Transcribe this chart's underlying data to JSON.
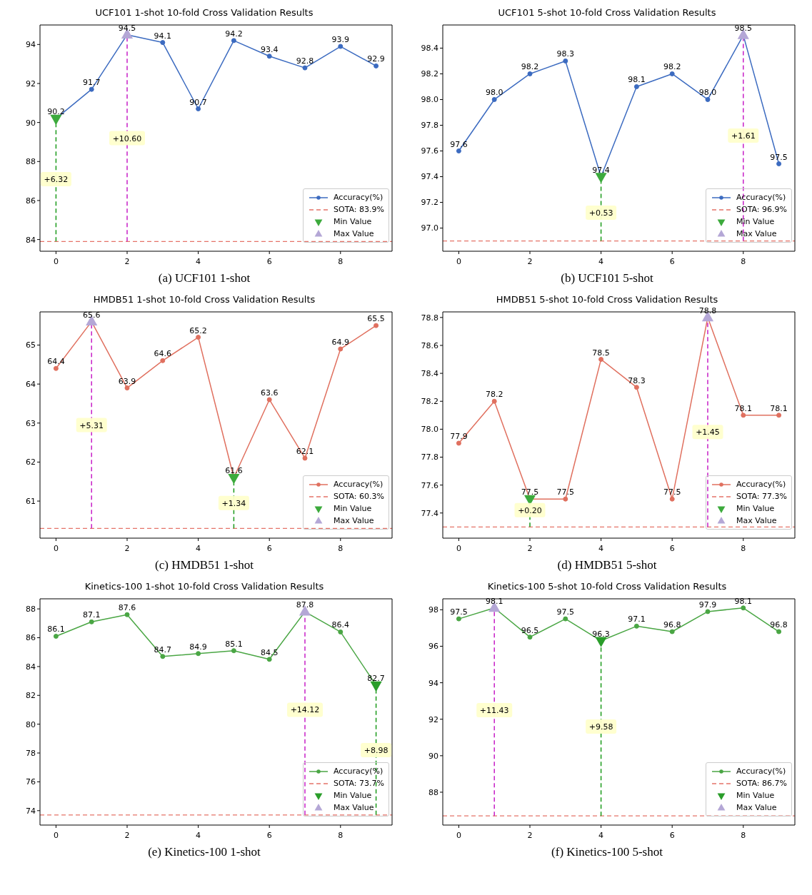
{
  "chart_data": [
    {
      "type": "line",
      "title": "UCF101 1-shot 10-fold Cross Validation Results",
      "x": [
        0,
        1,
        2,
        3,
        4,
        5,
        6,
        7,
        8,
        9
      ],
      "xlim": [
        -0.45,
        9.45
      ],
      "xticks": [
        0,
        2,
        4,
        6,
        8
      ],
      "ylim": [
        83.4,
        95.0
      ],
      "yticks": [
        84,
        86,
        88,
        90,
        92,
        94
      ],
      "legend": "bottom right",
      "series": [
        {
          "type": "line",
          "x": [
            0,
            0
          ],
          "values": [
            83.9,
            90.2
          ],
          "color": "#1a9a1a",
          "line_style": "dashed",
          "marker": "none"
        },
        {
          "type": "line",
          "x": [
            2,
            2
          ],
          "values": [
            83.9,
            94.5
          ],
          "color": "#c71fc7",
          "line_style": "dashed",
          "marker": "none"
        },
        {
          "name": "Accuracy(%)",
          "type": "line",
          "color": "#3c6bc0",
          "marker": "circle",
          "values": [
            90.2,
            91.7,
            94.5,
            94.1,
            90.7,
            94.2,
            93.4,
            92.8,
            93.9,
            92.9
          ],
          "value_labels": [
            "90.2",
            "91.7",
            "94.5",
            "94.1",
            "90.7",
            "94.2",
            "93.4",
            "92.8",
            "93.9",
            "92.9"
          ]
        },
        {
          "name": "Min Value",
          "type": "scatter",
          "x": [
            0
          ],
          "values": [
            90.2
          ],
          "color": "#3caa3c",
          "marker": "triangle-down"
        },
        {
          "name": "Max Value",
          "type": "scatter",
          "x": [
            2
          ],
          "values": [
            94.5
          ],
          "color": "#b4a7d6",
          "marker": "triangle"
        }
      ],
      "ref_lines": [
        {
          "axis": "y",
          "value": 83.9,
          "label": "SOTA: 83.9%",
          "color": "#e57368",
          "line_style": "dashed"
        }
      ],
      "annotations": [
        {
          "text": "+6.32",
          "x": 0,
          "y": 87.1
        },
        {
          "text": "+10.60",
          "x": 2,
          "y": 89.2
        },
        "(a) UCF101 1-shot"
      ]
    },
    {
      "type": "line",
      "title": "UCF101 5-shot 10-fold Cross Validation Results",
      "x": [
        0,
        1,
        2,
        3,
        4,
        5,
        6,
        7,
        8,
        9
      ],
      "xlim": [
        -0.45,
        9.45
      ],
      "xticks": [
        0,
        2,
        4,
        6,
        8
      ],
      "ylim": [
        96.82,
        98.58
      ],
      "yticks": [
        {
          "value": 97.0,
          "label": "97.0"
        },
        97.2,
        97.4,
        97.6,
        97.8,
        {
          "value": 98.0,
          "label": "98.0"
        },
        98.2,
        98.4
      ],
      "legend": "bottom right",
      "series": [
        {
          "type": "line",
          "x": [
            4,
            4
          ],
          "values": [
            96.9,
            97.4
          ],
          "color": "#1a9a1a",
          "line_style": "dashed",
          "marker": "none"
        },
        {
          "type": "line",
          "x": [
            8,
            8
          ],
          "values": [
            96.9,
            98.5
          ],
          "color": "#c71fc7",
          "line_style": "dashed",
          "marker": "none"
        },
        {
          "name": "Accuracy(%)",
          "type": "line",
          "color": "#3c6bc0",
          "marker": "circle",
          "values": [
            97.6,
            98.0,
            98.2,
            98.3,
            97.4,
            98.1,
            98.2,
            98.0,
            98.5,
            97.5
          ],
          "value_labels": [
            "97.6",
            "98.0",
            "98.2",
            "98.3",
            "97.4",
            "98.1",
            "98.2",
            "98.0",
            "98.5",
            "97.5"
          ]
        },
        {
          "name": "Min Value",
          "type": "scatter",
          "x": [
            4
          ],
          "values": [
            97.4
          ],
          "color": "#3caa3c",
          "marker": "triangle-down"
        },
        {
          "name": "Max Value",
          "type": "scatter",
          "x": [
            8
          ],
          "values": [
            98.5
          ],
          "color": "#b4a7d6",
          "marker": "triangle"
        }
      ],
      "ref_lines": [
        {
          "axis": "y",
          "value": 96.9,
          "label": "SOTA: 96.9%",
          "color": "#e57368",
          "line_style": "dashed"
        }
      ],
      "annotations": [
        {
          "text": "+0.53",
          "x": 4,
          "y": 97.12
        },
        {
          "text": "+1.61",
          "x": 8,
          "y": 97.72
        },
        "(b) UCF101 5-shot"
      ]
    },
    {
      "type": "line",
      "title": "HMDB51 1-shot 10-fold Cross Validation Results",
      "x": [
        0,
        1,
        2,
        3,
        4,
        5,
        6,
        7,
        8,
        9
      ],
      "xlim": [
        -0.45,
        9.45
      ],
      "xticks": [
        0,
        2,
        4,
        6,
        8
      ],
      "ylim": [
        60.05,
        65.85
      ],
      "yticks": [
        61,
        62,
        63,
        64,
        65
      ],
      "legend": "bottom right",
      "series": [
        {
          "type": "line",
          "x": [
            5,
            5
          ],
          "values": [
            60.3,
            61.6
          ],
          "color": "#1a9a1a",
          "line_style": "dashed",
          "marker": "none"
        },
        {
          "type": "line",
          "x": [
            1,
            1
          ],
          "values": [
            60.3,
            65.6
          ],
          "color": "#c71fc7",
          "line_style": "dashed",
          "marker": "none"
        },
        {
          "name": "Accuracy(%)",
          "type": "line",
          "color": "#e0705f",
          "marker": "circle",
          "values": [
            64.4,
            65.6,
            63.9,
            64.6,
            65.2,
            61.6,
            63.6,
            62.1,
            64.9,
            65.5
          ],
          "value_labels": [
            "64.4",
            "65.6",
            "63.9",
            "64.6",
            "65.2",
            "61.6",
            "63.6",
            "62.1",
            "64.9",
            "65.5"
          ]
        },
        {
          "name": "Min Value",
          "type": "scatter",
          "x": [
            5
          ],
          "values": [
            61.6
          ],
          "color": "#3caa3c",
          "marker": "triangle-down"
        },
        {
          "name": "Max Value",
          "type": "scatter",
          "x": [
            1
          ],
          "values": [
            65.6
          ],
          "color": "#b4a7d6",
          "marker": "triangle"
        }
      ],
      "ref_lines": [
        {
          "axis": "y",
          "value": 60.3,
          "label": "SOTA: 60.3%",
          "color": "#e57368",
          "line_style": "dashed"
        }
      ],
      "annotations": [
        {
          "text": "+5.31",
          "x": 1,
          "y": 62.95
        },
        {
          "text": "+1.34",
          "x": 5,
          "y": 60.95
        },
        "(c) HMDB51 1-shot"
      ]
    },
    {
      "type": "line",
      "title": "HMDB51 5-shot 10-fold Cross Validation Results",
      "x": [
        0,
        1,
        2,
        3,
        4,
        5,
        6,
        7,
        8,
        9
      ],
      "xlim": [
        -0.45,
        9.45
      ],
      "xticks": [
        0,
        2,
        4,
        6,
        8
      ],
      "ylim": [
        77.22,
        78.84
      ],
      "yticks": [
        77.4,
        77.6,
        77.8,
        {
          "value": 78.0,
          "label": "78.0"
        },
        78.2,
        78.4,
        78.6,
        78.8
      ],
      "legend": "bottom right",
      "series": [
        {
          "type": "line",
          "x": [
            2,
            2
          ],
          "values": [
            77.3,
            77.5
          ],
          "color": "#1a9a1a",
          "line_style": "dashed",
          "marker": "none"
        },
        {
          "type": "line",
          "x": [
            7,
            7
          ],
          "values": [
            77.3,
            78.8
          ],
          "color": "#c71fc7",
          "line_style": "dashed",
          "marker": "none"
        },
        {
          "name": "Accuracy(%)",
          "type": "line",
          "color": "#e0705f",
          "marker": "circle",
          "values": [
            77.9,
            78.2,
            77.5,
            77.5,
            78.5,
            78.3,
            77.5,
            78.8,
            78.1,
            78.1
          ],
          "value_labels": [
            "77.9",
            "78.2",
            "77.5",
            "77.5",
            "78.5",
            "78.3",
            "77.5",
            "78.8",
            "78.1",
            "78.1"
          ]
        },
        {
          "name": "Min Value",
          "type": "scatter",
          "x": [
            2
          ],
          "values": [
            77.5
          ],
          "color": "#3caa3c",
          "marker": "triangle-down"
        },
        {
          "name": "Max Value",
          "type": "scatter",
          "x": [
            7
          ],
          "values": [
            78.8
          ],
          "color": "#b4a7d6",
          "marker": "triangle"
        }
      ],
      "ref_lines": [
        {
          "axis": "y",
          "value": 77.3,
          "label": "SOTA: 77.3%",
          "color": "#e57368",
          "line_style": "dashed"
        }
      ],
      "annotations": [
        {
          "text": "+0.20",
          "x": 2,
          "y": 77.42
        },
        {
          "text": "+1.45",
          "x": 7,
          "y": 77.98
        },
        "(d) HMDB51 5-shot"
      ]
    },
    {
      "type": "line",
      "title": "Kinetics-100 1-shot 10-fold Cross Validation Results",
      "x": [
        0,
        1,
        2,
        3,
        4,
        5,
        6,
        7,
        8,
        9
      ],
      "xlim": [
        -0.45,
        9.45
      ],
      "xticks": [
        0,
        2,
        4,
        6,
        8
      ],
      "ylim": [
        73.0,
        88.7
      ],
      "yticks": [
        74,
        76,
        78,
        80,
        82,
        84,
        86,
        88
      ],
      "legend": "bottom right",
      "series": [
        {
          "type": "line",
          "x": [
            9,
            9
          ],
          "values": [
            73.7,
            82.7
          ],
          "color": "#1a9a1a",
          "line_style": "dashed",
          "marker": "none"
        },
        {
          "type": "line",
          "x": [
            7,
            7
          ],
          "values": [
            73.7,
            87.8
          ],
          "color": "#c71fc7",
          "line_style": "dashed",
          "marker": "none"
        },
        {
          "name": "Accuracy(%)",
          "type": "line",
          "color": "#4aa644",
          "marker": "circle",
          "values": [
            86.1,
            87.1,
            87.6,
            84.7,
            84.9,
            85.1,
            84.5,
            87.8,
            86.4,
            82.7
          ],
          "value_labels": [
            "86.1",
            "87.1",
            "87.6",
            "84.7",
            "84.9",
            "85.1",
            "84.5",
            "87.8",
            "86.4",
            "82.7"
          ]
        },
        {
          "name": "Min Value",
          "type": "scatter",
          "x": [
            9
          ],
          "values": [
            82.7
          ],
          "color": "#2a9d2a",
          "marker": "triangle-down"
        },
        {
          "name": "Max Value",
          "type": "scatter",
          "x": [
            7
          ],
          "values": [
            87.8
          ],
          "color": "#b4a7d6",
          "marker": "triangle"
        }
      ],
      "ref_lines": [
        {
          "axis": "y",
          "value": 73.7,
          "label": "SOTA: 73.7%",
          "color": "#e57368",
          "line_style": "dashed"
        }
      ],
      "annotations": [
        {
          "text": "+14.12",
          "x": 7,
          "y": 81.0
        },
        {
          "text": "+8.98",
          "x": 9,
          "y": 78.2
        },
        "(e) Kinetics-100 1-shot"
      ]
    },
    {
      "type": "line",
      "title": "Kinetics-100 5-shot 10-fold Cross Validation Results",
      "x": [
        0,
        1,
        2,
        3,
        4,
        5,
        6,
        7,
        8,
        9
      ],
      "xlim": [
        -0.45,
        9.45
      ],
      "xticks": [
        0,
        2,
        4,
        6,
        8
      ],
      "ylim": [
        86.2,
        98.6
      ],
      "yticks": [
        88,
        90,
        92,
        94,
        96,
        98
      ],
      "legend": "bottom right",
      "series": [
        {
          "type": "line",
          "x": [
            4,
            4
          ],
          "values": [
            86.7,
            96.3
          ],
          "color": "#1a9a1a",
          "line_style": "dashed",
          "marker": "none"
        },
        {
          "type": "line",
          "x": [
            1,
            1
          ],
          "values": [
            86.7,
            98.1
          ],
          "color": "#c71fc7",
          "line_style": "dashed",
          "marker": "none"
        },
        {
          "name": "Accuracy(%)",
          "type": "line",
          "color": "#4aa644",
          "marker": "circle",
          "values": [
            97.5,
            98.1,
            96.5,
            97.5,
            96.3,
            97.1,
            96.8,
            97.9,
            98.1,
            96.8
          ],
          "value_labels": [
            "97.5",
            "98.1",
            "96.5",
            "97.5",
            "96.3",
            "97.1",
            "96.8",
            "97.9",
            "98.1",
            "96.8"
          ]
        },
        {
          "name": "Min Value",
          "type": "scatter",
          "x": [
            4
          ],
          "values": [
            96.3
          ],
          "color": "#2a9d2a",
          "marker": "triangle-down"
        },
        {
          "name": "Max Value",
          "type": "scatter",
          "x": [
            1
          ],
          "values": [
            98.1
          ],
          "color": "#b4a7d6",
          "marker": "triangle"
        }
      ],
      "ref_lines": [
        {
          "axis": "y",
          "value": 86.7,
          "label": "SOTA: 86.7%",
          "color": "#e57368",
          "line_style": "dashed"
        }
      ],
      "annotations": [
        {
          "text": "+11.43",
          "x": 1,
          "y": 92.5
        },
        {
          "text": "+9.58",
          "x": 4,
          "y": 91.6
        },
        "(f) Kinetics-100 5-shot"
      ]
    }
  ]
}
